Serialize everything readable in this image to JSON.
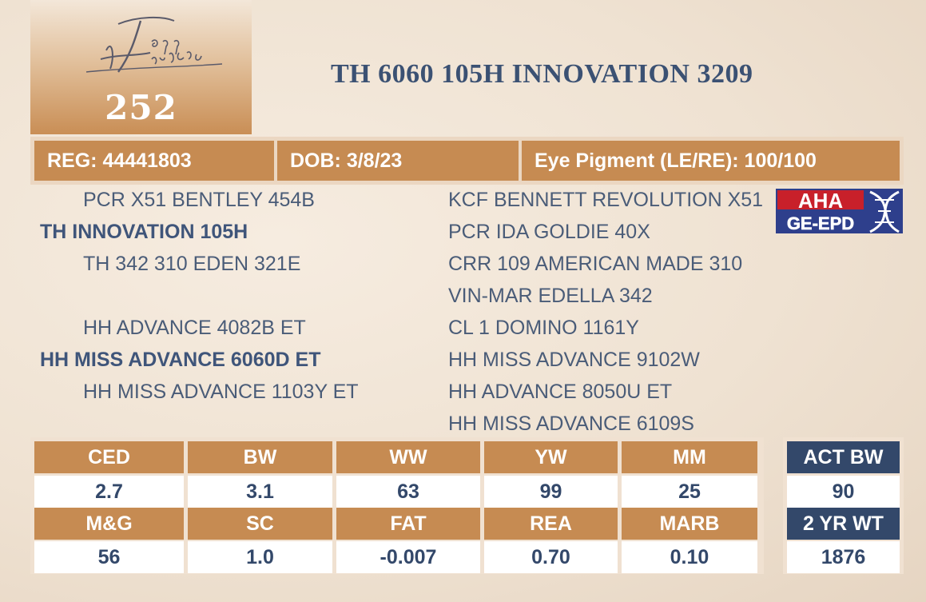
{
  "lot": {
    "number": "252"
  },
  "title": "TH 6060 105H INNOVATION 3209",
  "info": {
    "reg": "REG: 44441803",
    "dob": "DOB: 3/8/23",
    "eye": "Eye Pigment (LE/RE): 100/100"
  },
  "pedigree": {
    "col1": [
      "PCR X51 BENTLEY 454B",
      "TH INNOVATION 105H",
      "TH 342 310 EDEN 321E",
      "HH ADVANCE 4082B ET",
      "HH MISS ADVANCE 6060D ET",
      "HH MISS ADVANCE 1103Y ET"
    ],
    "col2": [
      "KCF BENNETT REVOLUTION X51",
      "PCR IDA GOLDIE 40X",
      "CRR 109 AMERICAN MADE 310",
      "VIN-MAR EDELLA 342",
      "CL 1 DOMINO 1161Y",
      "HH MISS ADVANCE 9102W",
      "HH ADVANCE 8050U ET",
      "HH MISS ADVANCE 6109S"
    ]
  },
  "epd": {
    "row1_headers": [
      "CED",
      "BW",
      "WW",
      "YW",
      "MM"
    ],
    "row1_values": [
      "2.7",
      "3.1",
      "63",
      "99",
      "25"
    ],
    "row2_headers": [
      "M&G",
      "SC",
      "FAT",
      "REA",
      "MARB"
    ],
    "row2_values": [
      "56",
      "1.0",
      "-0.007",
      "0.70",
      "0.10"
    ]
  },
  "actual": {
    "bw_label": "ACT BW",
    "bw_value": "90",
    "wt_label": "2 YR WT",
    "wt_value": "1876"
  },
  "colors": {
    "copper": "#c68b52",
    "navy": "#33486a",
    "title_blue": "#3b5173"
  }
}
